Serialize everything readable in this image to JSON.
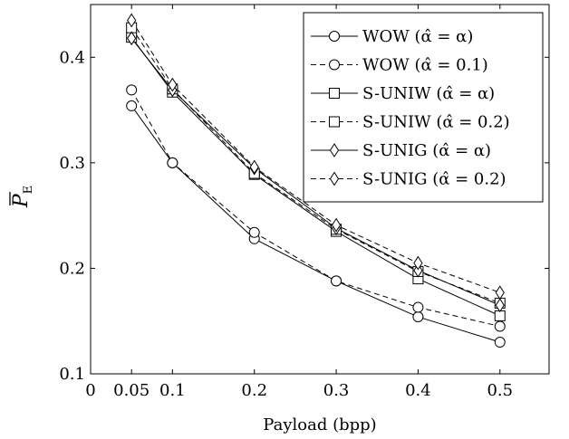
{
  "chart_data": {
    "type": "line",
    "title": "",
    "xlabel": "Payload (bpp)",
    "ylabel": "P̅_E",
    "ylabel_main": "P",
    "ylabel_sub": "E",
    "xlim": [
      0,
      0.56
    ],
    "ylim": [
      0.1,
      0.45
    ],
    "x_ticks": [
      0,
      0.05,
      0.1,
      0.2,
      0.3,
      0.4,
      0.5
    ],
    "x_tick_labels": [
      "0",
      "0.05",
      "0.1",
      "0.2",
      "0.3",
      "0.4",
      "0.5"
    ],
    "y_ticks": [
      0.1,
      0.2,
      0.3,
      0.4
    ],
    "y_tick_labels": [
      "0.1",
      "0.2",
      "0.3",
      "0.4"
    ],
    "grid": false,
    "legend_position": "top-right",
    "x": [
      0.05,
      0.1,
      0.2,
      0.3,
      0.4,
      0.5
    ],
    "series": [
      {
        "name": "WOW (α̂ = α)",
        "marker": "circle",
        "dashed": false,
        "values": [
          0.354,
          0.3,
          0.228,
          0.188,
          0.154,
          0.13
        ]
      },
      {
        "name": "WOW (α̂ = 0.1)",
        "marker": "circle",
        "dashed": true,
        "values": [
          0.369,
          0.3,
          0.234,
          0.188,
          0.163,
          0.145
        ]
      },
      {
        "name": "S-UNIW (α̂ = α)",
        "marker": "square",
        "dashed": false,
        "values": [
          0.419,
          0.367,
          0.289,
          0.235,
          0.19,
          0.155
        ]
      },
      {
        "name": "S-UNIW (α̂ = 0.2)",
        "marker": "square",
        "dashed": true,
        "values": [
          0.428,
          0.37,
          0.29,
          0.237,
          0.197,
          0.167
        ]
      },
      {
        "name": "S-UNIG (α̂ = α)",
        "marker": "diamond",
        "dashed": false,
        "values": [
          0.418,
          0.369,
          0.295,
          0.238,
          0.198,
          0.165
        ]
      },
      {
        "name": "S-UNIG (α̂ = 0.2)",
        "marker": "diamond",
        "dashed": true,
        "values": [
          0.435,
          0.374,
          0.296,
          0.241,
          0.205,
          0.177
        ]
      }
    ]
  }
}
